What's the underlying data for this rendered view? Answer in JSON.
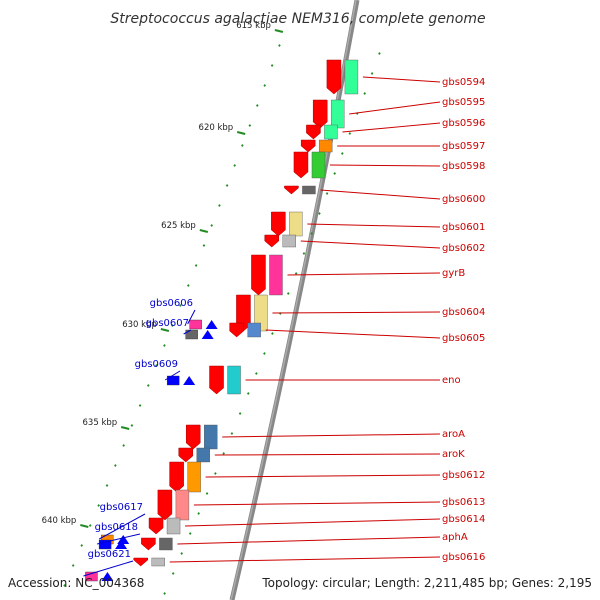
{
  "title": "Streptococcus agalactiae NEM316, complete genome",
  "accession": "Accession: NC_004368",
  "topology": "Topology: circular; Length: 2,211,485 bp; Genes: 2,195",
  "colors": {
    "backbone": "#808080",
    "plus_label": "#cc0000",
    "minus_label": "#0000cc",
    "tick": "#228b22",
    "gene_arrow_plus": "#ff0000",
    "gene_arrow_minus": "#0000ff"
  },
  "ticks": [
    {
      "label": "615 kbp",
      "major": true
    },
    {
      "label": "620 kbp",
      "major": true
    },
    {
      "label": "625 kbp",
      "major": true
    },
    {
      "label": "630 kbp",
      "major": true
    },
    {
      "label": "635 kbp",
      "major": true
    },
    {
      "label": "640 kbp",
      "major": true
    }
  ],
  "genes_plus": [
    {
      "name": "gbs0594",
      "cog_color": "#33ff99"
    },
    {
      "name": "gbs0595",
      "cog_color": "#33ff99"
    },
    {
      "name": "gbs0596",
      "cog_color": "#33ff99"
    },
    {
      "name": "gbs0597",
      "cog_color": "#ff8800"
    },
    {
      "name": "gbs0598",
      "cog_color": "#33cc33"
    },
    {
      "name": "gbs0600",
      "cog_color": "#666666"
    },
    {
      "name": "gbs0601",
      "cog_color": "#eedd88"
    },
    {
      "name": "gbs0602",
      "cog_color": "#bbbbbb"
    },
    {
      "name": "gyrB",
      "cog_color": "#ff3399"
    },
    {
      "name": "gbs0604",
      "cog_color": "#eedd88"
    },
    {
      "name": "gbs0605",
      "cog_color": "#5588cc"
    },
    {
      "name": "eno",
      "cog_color": "#22cccc"
    },
    {
      "name": "aroA",
      "cog_color": "#4477aa"
    },
    {
      "name": "aroK",
      "cog_color": "#4477aa"
    },
    {
      "name": "gbs0612",
      "cog_color": "#ff9900"
    },
    {
      "name": "gbs0613",
      "cog_color": "#ff8888"
    },
    {
      "name": "gbs0614",
      "cog_color": "#bbbbbb"
    },
    {
      "name": "aphA",
      "cog_color": "#666666"
    },
    {
      "name": "gbs0616",
      "cog_color": "#bbbbbb"
    }
  ],
  "genes_minus": [
    {
      "name": "gbs0606",
      "cog_color": "#ff3399"
    },
    {
      "name": "gbs0607",
      "cog_color": "#666666"
    },
    {
      "name": "gbs0609",
      "cog_color": "#0000ff"
    },
    {
      "name": "gbs0617",
      "cog_color": "#ff8800"
    },
    {
      "name": "gbs0618",
      "cog_color": "#0000ff"
    },
    {
      "name": "gbs0621",
      "cog_color": "#ff3399"
    }
  ]
}
